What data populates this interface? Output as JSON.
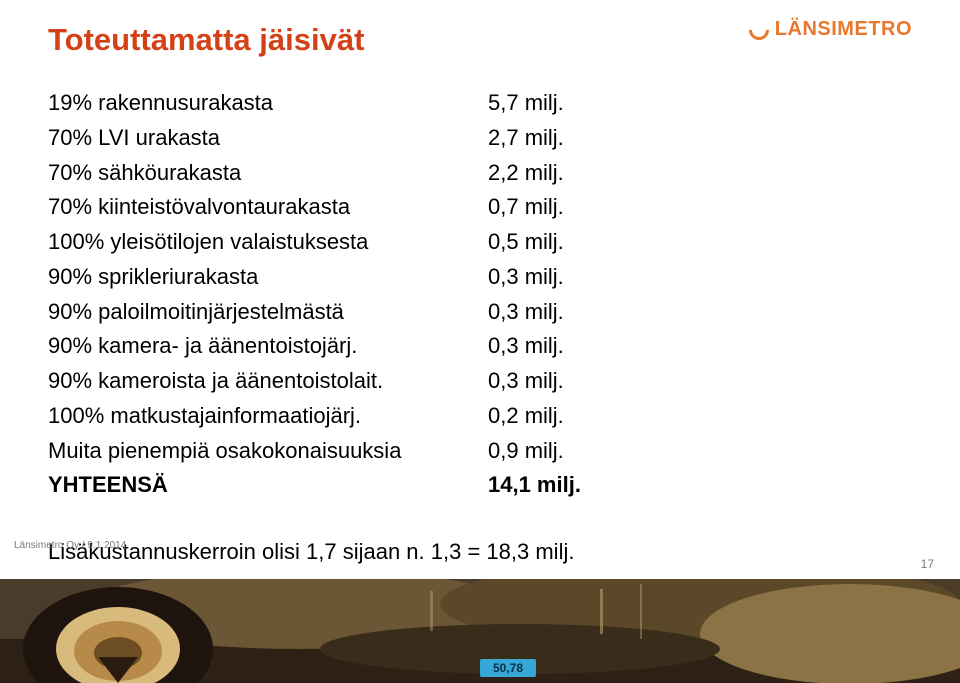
{
  "title": "Toteuttamatta jäisivät",
  "title_color": "#d34217",
  "logo": {
    "text": "LÄNSIMETRO",
    "color": "#e9772e"
  },
  "body_fontsize": 22,
  "rows": [
    {
      "label": "19% rakennusurakasta",
      "value": "5,7 milj.",
      "bold": false
    },
    {
      "label": "70% LVI urakasta",
      "value": "2,7 milj.",
      "bold": false
    },
    {
      "label": "70% sähköurakasta",
      "value": "2,2 milj.",
      "bold": false
    },
    {
      "label": "70% kiinteistövalvontaurakasta",
      "value": "0,7 milj.",
      "bold": false
    },
    {
      "label": "100% yleisötilojen valaistuksesta",
      "value": "0,5 milj.",
      "bold": false
    },
    {
      "label": "90% sprikleriurakasta",
      "value": "0,3 milj.",
      "bold": false
    },
    {
      "label": "90% paloilmoitinjärjestelmästä",
      "value": "0,3 milj.",
      "bold": false
    },
    {
      "label": "90% kamera- ja äänentoistojärj.",
      "value": "0,3 milj.",
      "bold": false
    },
    {
      "label": "90% kameroista ja äänentoistolait.",
      "value": "0,3 milj.",
      "bold": false
    },
    {
      "label": "100% matkustajainformaatiojärj.",
      "value": "0,2 milj.",
      "bold": false
    },
    {
      "label": "Muita pienempiä osakokonaisuuksia",
      "value": "0,9 milj.",
      "bold": false
    },
    {
      "label": "YHTEENSÄ",
      "value": "14,1 milj.",
      "bold": true
    }
  ],
  "footnote": "Lisäkustannuskerroin olisi 1,7 sijaan n. 1,3 = 18,3 milj.",
  "meta": "Länsimetro Oy  /   9.1.2014",
  "page_number": "17",
  "photo_strip": {
    "height": 104,
    "background": "#4a3b2a",
    "tunnel_outer": "#1e140d",
    "tunnel_inner": "#b78a4a",
    "tunnel_ring": "#d8ba7d",
    "rock_mid": "#6b5635",
    "rock_light": "#8c7345",
    "marker_blue": "#36a7d6",
    "marker_text": "50,78"
  }
}
